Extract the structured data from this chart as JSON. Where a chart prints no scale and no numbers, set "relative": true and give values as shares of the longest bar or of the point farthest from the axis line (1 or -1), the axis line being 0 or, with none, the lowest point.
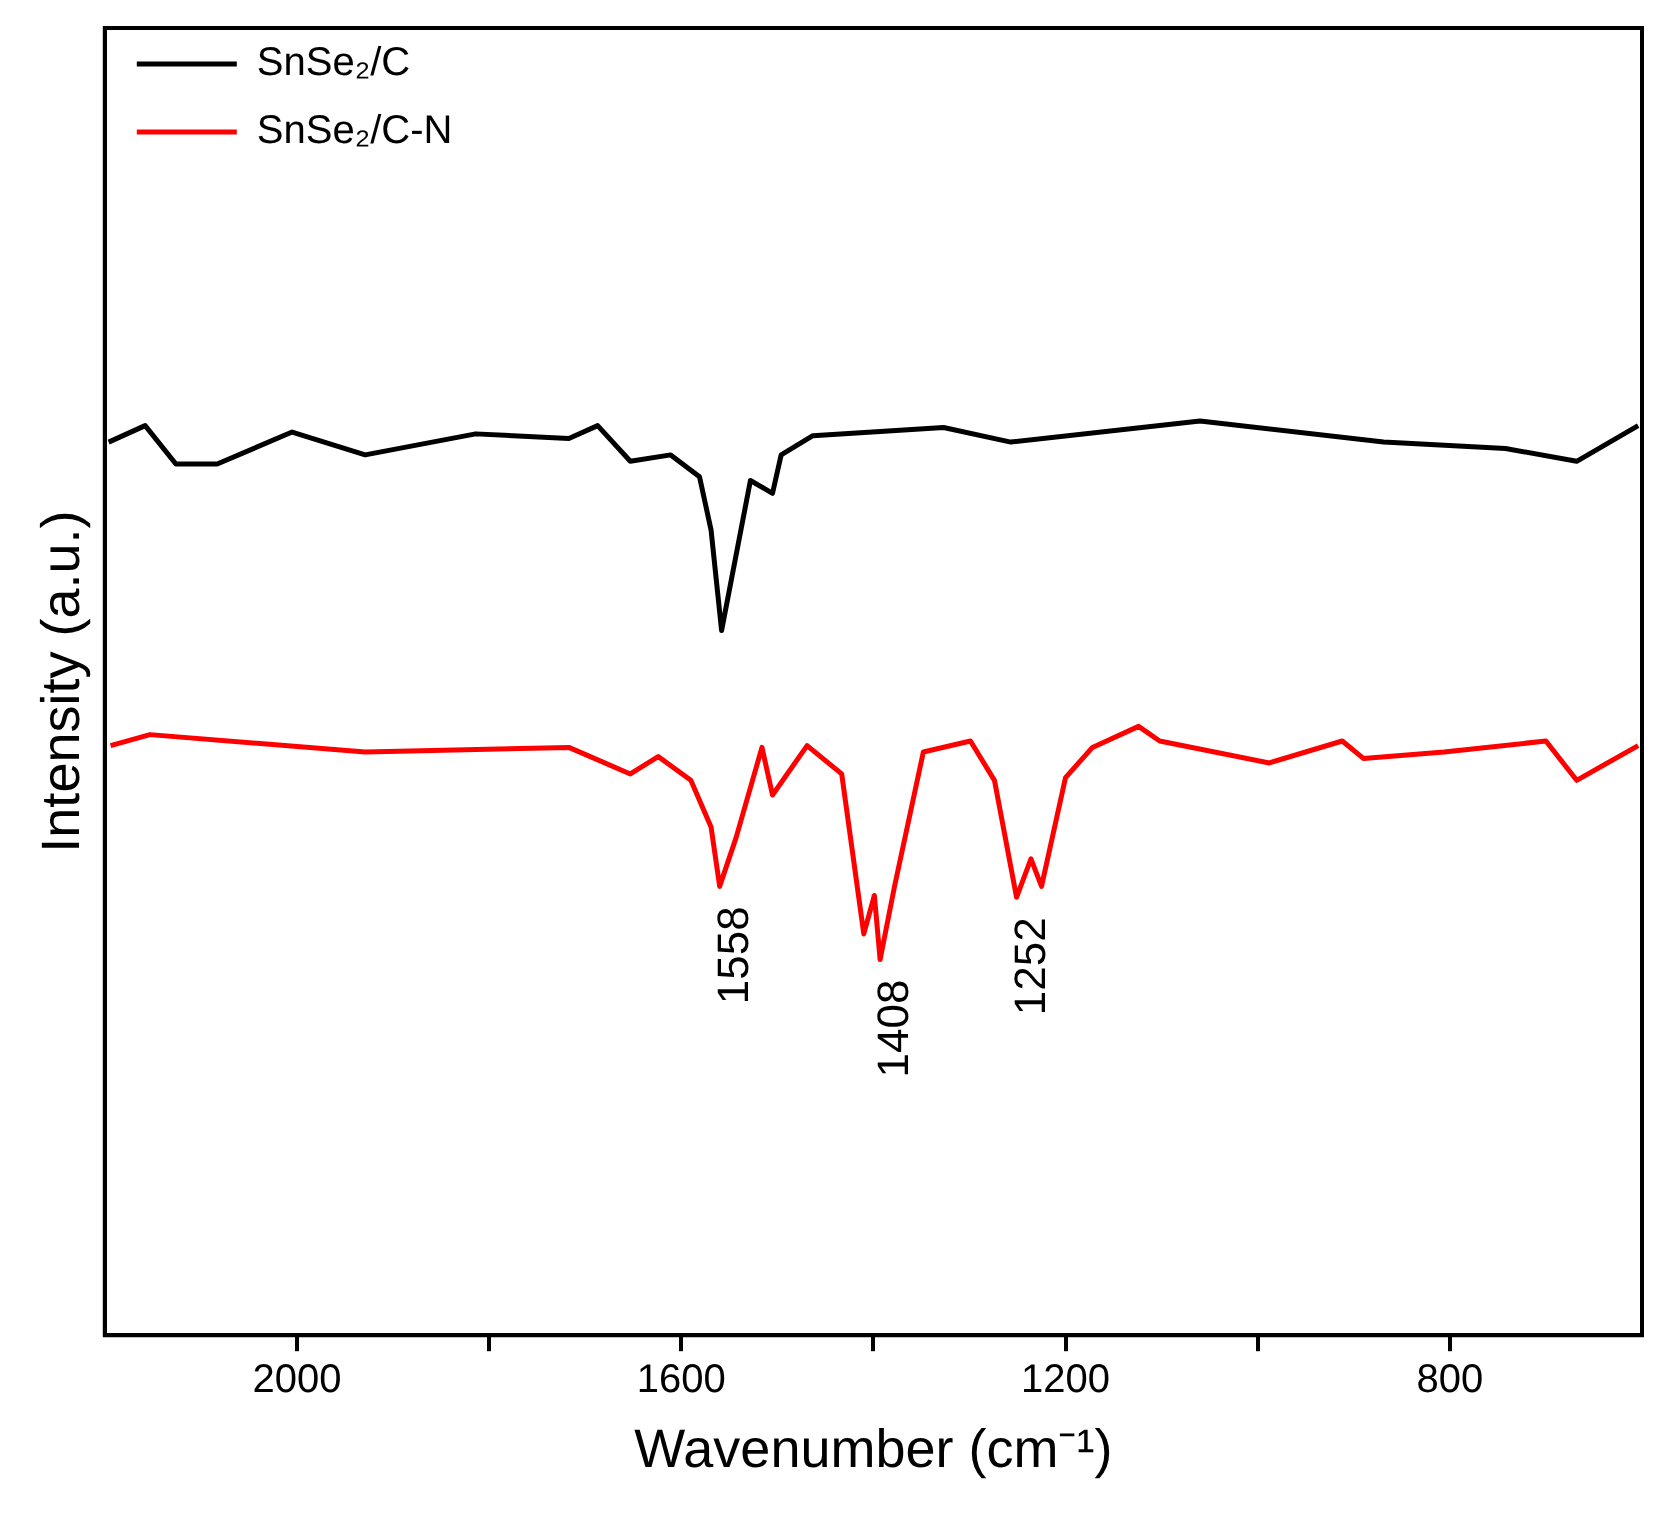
{
  "chart_data": {
    "type": "line",
    "relative": true,
    "xlabel": "Wavenumber (cm⁻¹)",
    "ylabel": "Intensity (a.u.)",
    "xlim": [
      2200,
      600
    ],
    "xticks": [
      2000,
      {
        "value": 1800,
        "label": null
      },
      1600,
      {
        "value": 1400,
        "label": null
      },
      1200,
      {
        "value": 1000,
        "label": null
      },
      800
    ],
    "tick_labels": "x",
    "grid": false,
    "legend": "top left",
    "marker": "none",
    "line_style": "solid",
    "series": [
      {
        "name": "SnSe₂/C",
        "color": "#000000",
        "x": [
          2196,
          2158,
          2126,
          2083,
          2005,
          1929,
          1814,
          1717,
          1687,
          1653,
          1611,
          1581,
          1569,
          1558,
          1543,
          1528,
          1505,
          1496,
          1463,
          1327,
          1257,
          1060,
          869,
          742,
          668,
          604
        ],
        "values": [
          0.977,
          0.995,
          0.953,
          0.953,
          0.988,
          0.963,
          0.986,
          0.981,
          0.995,
          0.956,
          0.963,
          0.939,
          0.881,
          0.771,
          0.853,
          0.935,
          0.921,
          0.963,
          0.984,
          0.993,
          0.977,
          1.0,
          0.977,
          0.97,
          0.956,
          0.995
        ]
      },
      {
        "name": "SnSe₂/C-N",
        "color": "#ff0000",
        "x": [
          2194,
          2153,
          1929,
          1717,
          1653,
          1624,
          1590,
          1569,
          1560,
          1543,
          1516,
          1505,
          1469,
          1433,
          1410,
          1399,
          1393,
          1378,
          1348,
          1299,
          1274,
          1251,
          1236,
          1225,
          1200,
          1172,
          1124,
          1102,
          988,
          912,
          890,
          806,
          700,
          668,
          604
        ],
        "values": [
          0.645,
          0.657,
          0.638,
          0.643,
          0.614,
          0.633,
          0.607,
          0.556,
          0.491,
          0.544,
          0.643,
          0.591,
          0.645,
          0.614,
          0.439,
          0.481,
          0.411,
          0.491,
          0.638,
          0.65,
          0.607,
          0.479,
          0.521,
          0.491,
          0.61,
          0.643,
          0.666,
          0.65,
          0.626,
          0.65,
          0.631,
          0.638,
          0.65,
          0.607,
          0.645
        ]
      }
    ],
    "annotations": [
      {
        "text": "1558",
        "x": 1560,
        "y": 0.491
      },
      {
        "text": "1408",
        "x": 1393,
        "y": 0.411
      },
      {
        "text": "1252",
        "x": 1251,
        "y": 0.479
      }
    ]
  }
}
